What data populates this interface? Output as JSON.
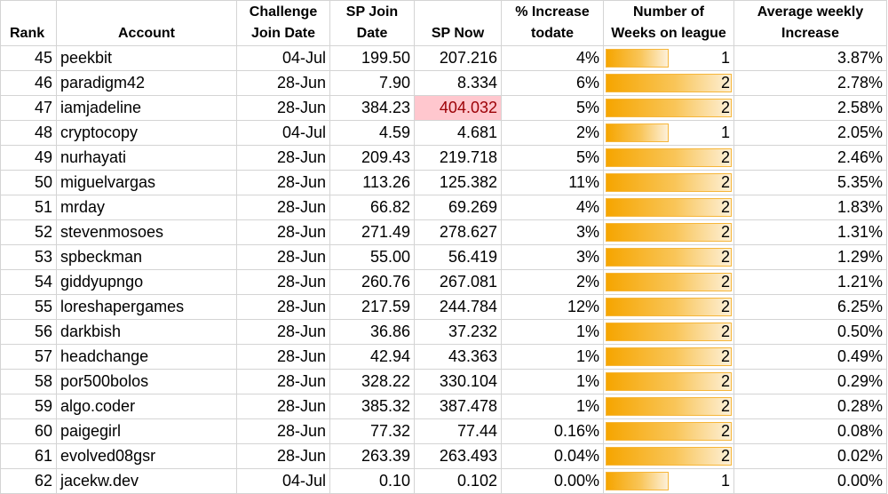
{
  "headers": {
    "rank": "Rank",
    "account": "Account",
    "challenge_join_date_l1": "Challenge",
    "challenge_join_date_l2": "Join Date",
    "sp_join_date_l1": "SP Join",
    "sp_join_date_l2": "Date",
    "sp_now": "SP Now",
    "pct_increase_l1": "% Increase",
    "pct_increase_l2": "todate",
    "weeks_l1": "Number of",
    "weeks_l2": "Weeks on league",
    "avg_weekly_l1": "Average weekly",
    "avg_weekly_l2": "Increase"
  },
  "weeks_max": 2,
  "highlight_color": "#ffc7ce",
  "bar_color": "#f6a500",
  "rows": [
    {
      "rank": "45",
      "account": "peekbit",
      "challenge_join": "04-Jul",
      "sp_join": "199.50",
      "sp_now": "207.216",
      "pct": "4%",
      "weeks": "1",
      "avg": "3.87%"
    },
    {
      "rank": "46",
      "account": "paradigm42",
      "challenge_join": "28-Jun",
      "sp_join": "7.90",
      "sp_now": "8.334",
      "pct": "6%",
      "weeks": "2",
      "avg": "2.78%"
    },
    {
      "rank": "47",
      "account": "iamjadeline",
      "challenge_join": "28-Jun",
      "sp_join": "384.23",
      "sp_now": "404.032",
      "pct": "5%",
      "weeks": "2",
      "avg": "2.58%",
      "highlight": true
    },
    {
      "rank": "48",
      "account": "cryptocopy",
      "challenge_join": "04-Jul",
      "sp_join": "4.59",
      "sp_now": "4.681",
      "pct": "2%",
      "weeks": "1",
      "avg": "2.05%"
    },
    {
      "rank": "49",
      "account": "nurhayati",
      "challenge_join": "28-Jun",
      "sp_join": "209.43",
      "sp_now": "219.718",
      "pct": "5%",
      "weeks": "2",
      "avg": "2.46%"
    },
    {
      "rank": "50",
      "account": "miguelvargas",
      "challenge_join": "28-Jun",
      "sp_join": "113.26",
      "sp_now": "125.382",
      "pct": "11%",
      "weeks": "2",
      "avg": "5.35%"
    },
    {
      "rank": "51",
      "account": "mrday",
      "challenge_join": "28-Jun",
      "sp_join": "66.82",
      "sp_now": "69.269",
      "pct": "4%",
      "weeks": "2",
      "avg": "1.83%"
    },
    {
      "rank": "52",
      "account": "stevenmosoes",
      "challenge_join": "28-Jun",
      "sp_join": "271.49",
      "sp_now": "278.627",
      "pct": "3%",
      "weeks": "2",
      "avg": "1.31%"
    },
    {
      "rank": "53",
      "account": "spbeckman",
      "challenge_join": "28-Jun",
      "sp_join": "55.00",
      "sp_now": "56.419",
      "pct": "3%",
      "weeks": "2",
      "avg": "1.29%"
    },
    {
      "rank": "54",
      "account": "giddyupngo",
      "challenge_join": "28-Jun",
      "sp_join": "260.76",
      "sp_now": "267.081",
      "pct": "2%",
      "weeks": "2",
      "avg": "1.21%"
    },
    {
      "rank": "55",
      "account": "loreshapergames",
      "challenge_join": "28-Jun",
      "sp_join": "217.59",
      "sp_now": "244.784",
      "pct": "12%",
      "weeks": "2",
      "avg": "6.25%"
    },
    {
      "rank": "56",
      "account": "darkbish",
      "challenge_join": "28-Jun",
      "sp_join": "36.86",
      "sp_now": "37.232",
      "pct": "1%",
      "weeks": "2",
      "avg": "0.50%"
    },
    {
      "rank": "57",
      "account": "headchange",
      "challenge_join": "28-Jun",
      "sp_join": "42.94",
      "sp_now": "43.363",
      "pct": "1%",
      "weeks": "2",
      "avg": "0.49%"
    },
    {
      "rank": "58",
      "account": "por500bolos",
      "challenge_join": "28-Jun",
      "sp_join": "328.22",
      "sp_now": "330.104",
      "pct": "1%",
      "weeks": "2",
      "avg": "0.29%"
    },
    {
      "rank": "59",
      "account": "algo.coder",
      "challenge_join": "28-Jun",
      "sp_join": "385.32",
      "sp_now": "387.478",
      "pct": "1%",
      "weeks": "2",
      "avg": "0.28%"
    },
    {
      "rank": "60",
      "account": "paigegirl",
      "challenge_join": "28-Jun",
      "sp_join": "77.32",
      "sp_now": "77.44",
      "pct": "0.16%",
      "weeks": "2",
      "avg": "0.08%"
    },
    {
      "rank": "61",
      "account": "evolved08gsr",
      "challenge_join": "28-Jun",
      "sp_join": "263.39",
      "sp_now": "263.493",
      "pct": "0.04%",
      "weeks": "2",
      "avg": "0.02%"
    },
    {
      "rank": "62",
      "account": "jacekw.dev",
      "challenge_join": "04-Jul",
      "sp_join": "0.10",
      "sp_now": "0.102",
      "pct": "0.00%",
      "weeks": "1",
      "avg": "0.00%"
    }
  ]
}
